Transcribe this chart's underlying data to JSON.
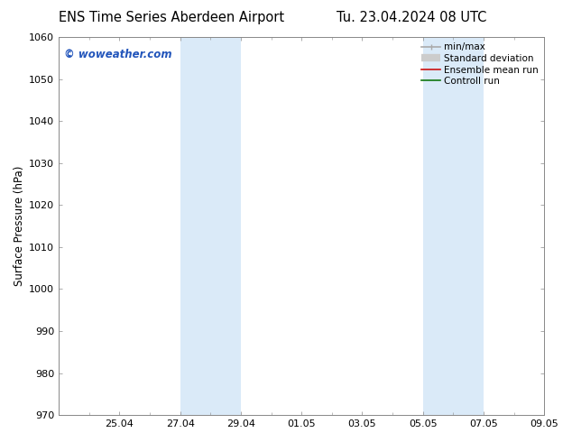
{
  "title": "ENS Time Series Aberdeen Airport",
  "title2": "Tu. 23.04.2024 08 UTC",
  "ylabel": "Surface Pressure (hPa)",
  "ylim": [
    970,
    1060
  ],
  "yticks": [
    970,
    980,
    990,
    1000,
    1010,
    1020,
    1030,
    1040,
    1050,
    1060
  ],
  "x_start": "2024-04-23",
  "x_end": "2024-05-09",
  "xtick_labels": [
    "25.04",
    "27.04",
    "29.04",
    "01.05",
    "03.05",
    "05.05",
    "07.05",
    "09.05"
  ],
  "xtick_dates": [
    "2024-04-25",
    "2024-04-27",
    "2024-04-29",
    "2024-05-01",
    "2024-05-03",
    "2024-05-05",
    "2024-05-07",
    "2024-05-09"
  ],
  "shaded_bands": [
    {
      "x_start": "2024-04-27",
      "x_end": "2024-04-29",
      "color": "#daeaf8"
    },
    {
      "x_start": "2024-05-05",
      "x_end": "2024-05-07",
      "color": "#daeaf8"
    }
  ],
  "watermark": "© woweather.com",
  "watermark_color": "#2255bb",
  "legend_items": [
    {
      "label": "min/max",
      "color": "#aaaaaa",
      "lw": 1.2
    },
    {
      "label": "Standard deviation",
      "color": "#cccccc",
      "lw": 6
    },
    {
      "label": "Ensemble mean run",
      "color": "#cc1111",
      "lw": 1.2
    },
    {
      "label": "Controll run",
      "color": "#117711",
      "lw": 1.2
    }
  ],
  "bg_color": "#ffffff",
  "plot_bg_color": "#ffffff",
  "spine_color": "#888888",
  "tick_color": "#333333",
  "title_fontsize": 10.5,
  "axis_label_fontsize": 8.5,
  "tick_fontsize": 8,
  "legend_fontsize": 7.5,
  "watermark_fontsize": 8.5
}
